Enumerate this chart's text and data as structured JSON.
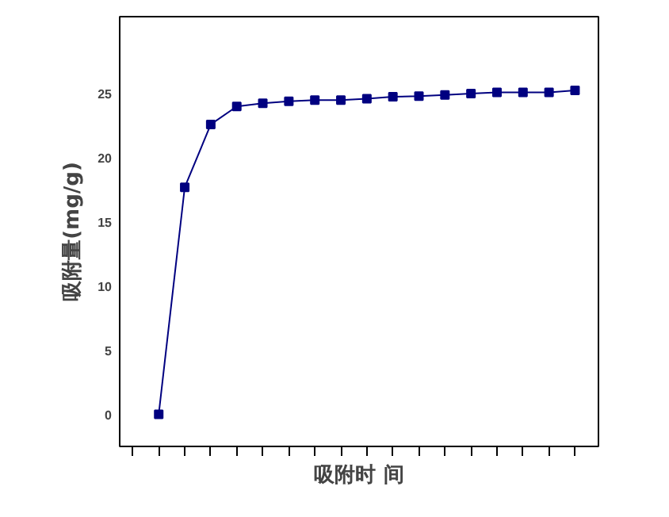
{
  "chart_data": {
    "type": "line",
    "xlabel": "吸附时 间",
    "ylabel": "吸附量(mg/g)",
    "categories": [
      null,
      null,
      null,
      null,
      null,
      null,
      null,
      null,
      null,
      null,
      null,
      null,
      null,
      null,
      null,
      null,
      null
    ],
    "series": [
      {
        "color": "#000080",
        "values": [
          0,
          17.7,
          22.6,
          24.0,
          24.25,
          24.4,
          24.5,
          24.5,
          24.6,
          24.75,
          24.8,
          24.9,
          25.0,
          25.1,
          25.1,
          25.1,
          25.25
        ]
      }
    ],
    "ylim": [
      -2.5,
      31
    ],
    "yticks": [
      0,
      5,
      10,
      15,
      20,
      25
    ],
    "marker": "square",
    "line_style": "solid",
    "grid": false
  }
}
